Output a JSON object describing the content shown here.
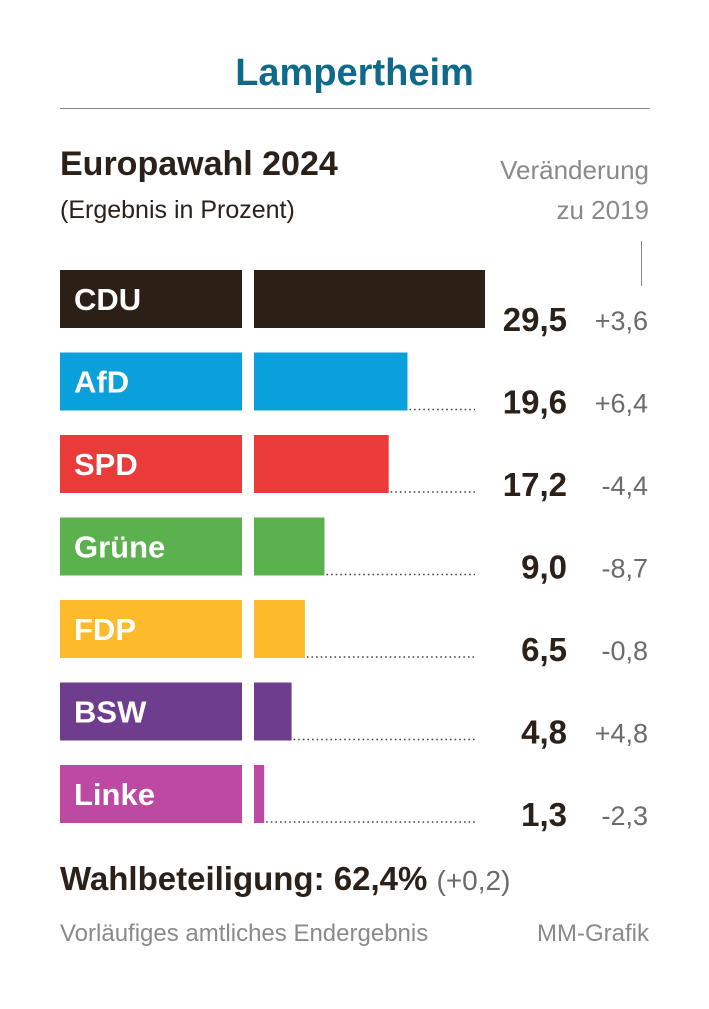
{
  "header": {
    "place": "Lampertheim"
  },
  "chart_data": {
    "type": "bar",
    "title": "Europawahl 2024",
    "subtitle": "(Ergebnis in Prozent)",
    "change_header": [
      "Veränderung",
      "zu 2019"
    ],
    "categories": [
      "CDU",
      "AfD",
      "SPD",
      "Grüne",
      "FDP",
      "BSW",
      "Linke"
    ],
    "values": [
      29.5,
      19.6,
      17.2,
      9.0,
      6.5,
      4.8,
      1.3
    ],
    "value_labels": [
      "29,5",
      "19,6",
      "17,2",
      "9,0",
      "6,5",
      "4,8",
      "1,3"
    ],
    "changes": [
      "+3,6",
      "+6,4",
      "-4,4",
      "-8,7",
      "-0,8",
      "+4,8",
      "-2,3"
    ],
    "colors": [
      "#2c2016",
      "#0aa0dc",
      "#ea3a3a",
      "#5bb14e",
      "#fdba2a",
      "#6f3d8e",
      "#bd49a2"
    ],
    "xlim": [
      0,
      29.5
    ]
  },
  "footer": {
    "turnout": "Wahlbeteiligung: 62,4%",
    "turnout_change": "(+0,2)",
    "source": "Vorläufiges amtliches Endergebnis",
    "credit": "MM-Grafik"
  }
}
